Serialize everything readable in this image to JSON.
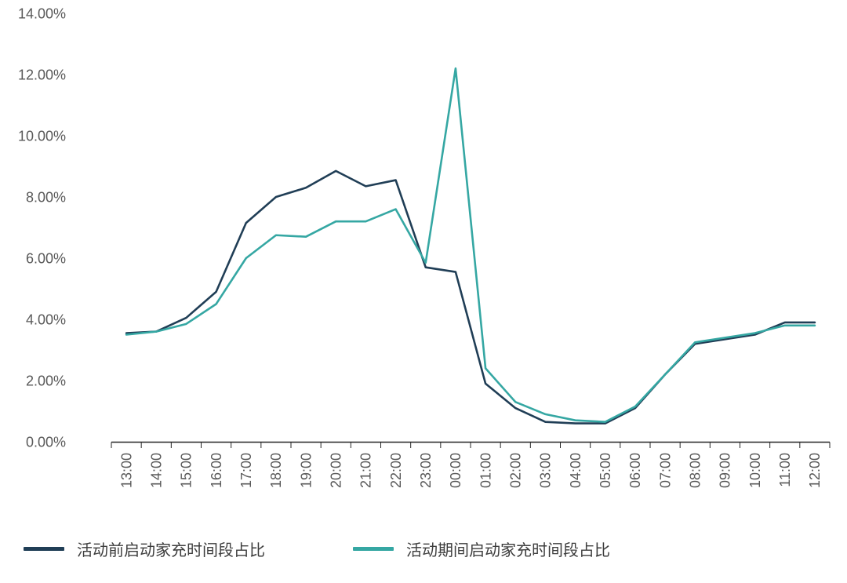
{
  "chart_data": {
    "type": "line",
    "categories": [
      "13:00",
      "14:00",
      "15:00",
      "16:00",
      "17:00",
      "18:00",
      "19:00",
      "20:00",
      "21:00",
      "22:00",
      "23:00",
      "00:00",
      "01:00",
      "02:00",
      "03:00",
      "04:00",
      "05:00",
      "06:00",
      "07:00",
      "08:00",
      "09:00",
      "10:00",
      "11:00",
      "12:00"
    ],
    "series": [
      {
        "name": "活动前启动家充时间段占比",
        "color": "#203e56",
        "values": [
          3.55,
          3.6,
          4.05,
          4.9,
          7.15,
          8.0,
          8.3,
          8.85,
          8.35,
          8.55,
          5.7,
          5.55,
          1.9,
          1.1,
          0.65,
          0.6,
          0.6,
          1.1,
          2.2,
          3.2,
          3.35,
          3.5,
          3.9,
          3.9
        ]
      },
      {
        "name": "活动期间启动家充时间段占比",
        "color": "#35a7a3",
        "values": [
          3.5,
          3.6,
          3.85,
          4.5,
          6.0,
          6.75,
          6.7,
          7.2,
          7.2,
          7.6,
          5.85,
          12.2,
          2.4,
          1.3,
          0.9,
          0.7,
          0.65,
          1.15,
          2.2,
          3.25,
          3.4,
          3.55,
          3.8,
          3.8
        ]
      }
    ],
    "ylim": [
      0,
      14
    ],
    "y_tick_step": 2,
    "y_tick_labels": [
      "0.00%",
      "2.00%",
      "4.00%",
      "6.00%",
      "8.00%",
      "10.00%",
      "12.00%",
      "14.00%"
    ],
    "x_tick_rotation": -90,
    "grid": false,
    "legend_position": "bottom",
    "axis_line_color": "#262626",
    "tick_label_color": "#595959"
  }
}
